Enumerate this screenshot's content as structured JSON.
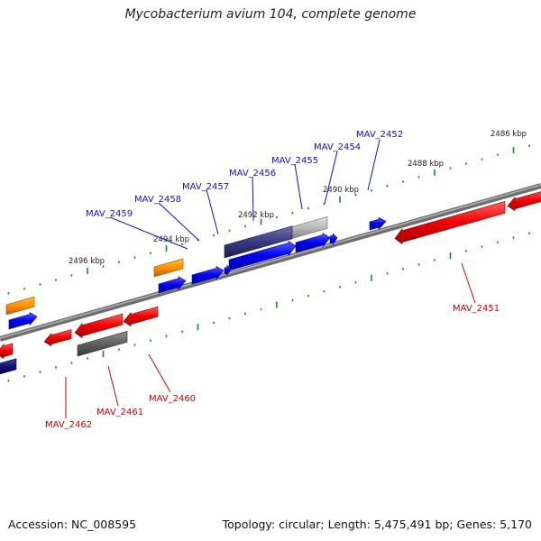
{
  "title": "Mycobacterium avium 104, complete genome",
  "footer": {
    "accession": "Accession: NC_008595",
    "info": "Topology: circular; Length: 5,475,491 bp; Genes: 5,170"
  },
  "scale_labels": [
    "2486 kbp",
    "2488 kbp",
    "2490 kbp",
    "2492 kbp",
    "2494 kbp",
    "2496 kbp"
  ],
  "gene_labels_top": [
    "MAV_2452",
    "MAV_2454",
    "MAV_2455",
    "MAV_2456",
    "MAV_2457",
    "MAV_2458",
    "MAV_2459"
  ],
  "gene_labels_bottom": [
    "MAV_2451",
    "MAV_2460",
    "MAV_2461",
    "MAV_2462"
  ],
  "colors": {
    "forward_label": "#1010c8",
    "reverse_label": "#cc0000",
    "tick": "#1a8a1a",
    "backbone": "#808080"
  }
}
